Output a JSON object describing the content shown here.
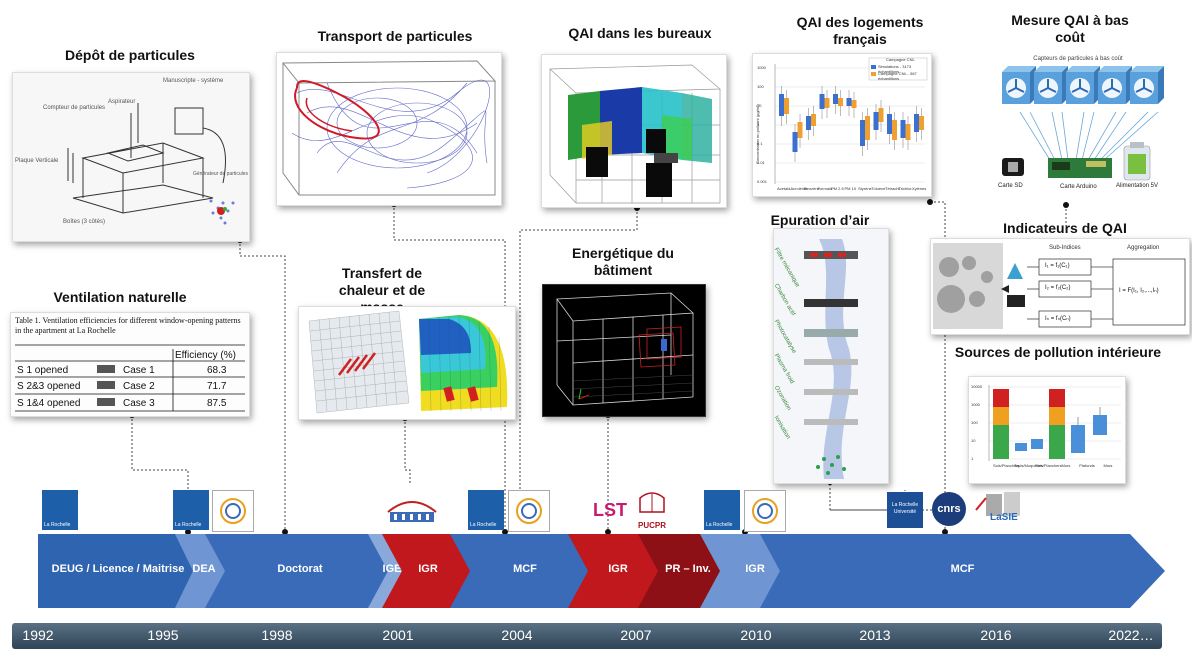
{
  "titles": {
    "depot": "Dépôt de particules",
    "transport": "Transport de particules",
    "qai_bureaux": "QAI dans les bureaux",
    "qai_logements": "QAI des logements français",
    "mesure": "Mesure QAI à bas coût",
    "ventilation": "Ventilation naturelle",
    "transfert": "Transfert de chaleur et de masse",
    "energetique": "Energétique du bâtiment",
    "epuration": "Epuration d’air",
    "indicateurs": "Indicateurs de QAI",
    "sources": "Sources de pollution intérieure"
  },
  "depot_labels": [
    "Manuscripte - système",
    "Aspirateur",
    "Compteur de particules",
    "Plaque Verticale",
    "Générateur de particules",
    "Boîtes (3 côtés)"
  ],
  "ventilation_table": {
    "caption": "Table 1. Ventilation efficiencies for different window-opening patterns in the apartment at La Rochelle",
    "header": "Efficiency (%)",
    "rows": [
      {
        "label": "S 1 opened",
        "case": "Case 1",
        "value": "68.3"
      },
      {
        "label": "S 2&3 opened",
        "case": "Case 2",
        "value": "71.7"
      },
      {
        "label": "S 1&4 opened",
        "case": "Case 3",
        "value": "87.5"
      }
    ]
  },
  "logements_chart": {
    "legend_title": "Campagne CNL",
    "legend": [
      "Simulations - 3173 échantillons",
      "Campagne CNL - 567 échantillons"
    ],
    "yticks": [
      "1000",
      "100",
      "10",
      "1",
      "0.1",
      "0.01",
      "0.001"
    ],
    "ylabel": "Concentration en polluant (µg/m³)",
    "categories": [
      "Acetald.",
      "Acroléine",
      "Benzène",
      "Formald.",
      "PM 2.5",
      "PM 10",
      "Styrène",
      "Toluène",
      "Tétrachl.",
      "Trichlor.",
      "Xylènes"
    ]
  },
  "mesure": {
    "subtitle": "Capteurs de particules à bas coût",
    "labels": [
      "Carte SD",
      "Carte Arduino",
      "Alimentation 5V"
    ]
  },
  "indicateurs": {
    "header_sub": "Sub-Indices",
    "header_agg": "Aggregation",
    "formulas": [
      "I₁ = f₁(C₁)",
      "I₂ = f₂(C₂)",
      "Iₙ = fₙ(Cₙ)"
    ],
    "aggregate": "I = F(I₁, I₂,...,Iₙ)"
  },
  "sources_chart": {
    "yticks": [
      "10000",
      "1000",
      "100",
      "10",
      "1"
    ],
    "categories": [
      "Sols/Planchers",
      "Tapis/Moquettes",
      "Sols/Planchers",
      "Murs",
      "Plafonds",
      "Murs"
    ]
  },
  "epuration_labels": [
    "Filtre mécanique",
    "Charbon actif",
    "Photocatalyse",
    "Plasma froid",
    "Ozonation",
    "Ionisation"
  ],
  "logos": {
    "lr": "La Rochelle",
    "lr_univ": "La Rochelle Université",
    "cnrs": "cnrs",
    "lsie": "LaSIE",
    "lst": "LST",
    "pucpr": "PUCPR"
  },
  "timeline": {
    "segments": [
      {
        "label": "DEUG / Licence / Maitrise",
        "color": "#2f64b0"
      },
      {
        "label": "DEA",
        "color": "#6f96d2"
      },
      {
        "label": "Doctorat",
        "color": "#3a6bb8"
      },
      {
        "label": "IGE",
        "color": "#8aa9db"
      },
      {
        "label": "IGR",
        "color": "#c0181d"
      },
      {
        "label": "MCF",
        "color": "#3a6bb8"
      },
      {
        "label": "IGR",
        "color": "#c0181d"
      },
      {
        "label": "PR – Inv.",
        "color": "#8c1016"
      },
      {
        "label": "IGR",
        "color": "#6f96d2"
      },
      {
        "label": "MCF",
        "color": "#3a6bb8"
      }
    ],
    "years": [
      "1992",
      "1995",
      "1998",
      "2001",
      "2004",
      "2007",
      "2010",
      "2013",
      "2016",
      "2022…"
    ]
  }
}
